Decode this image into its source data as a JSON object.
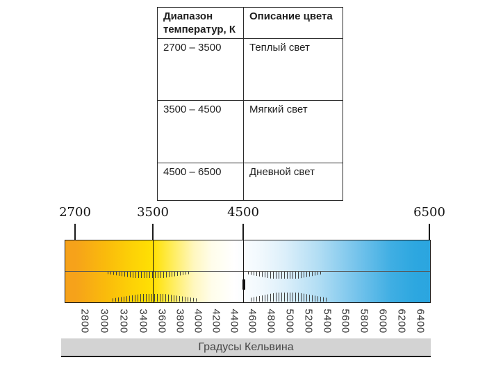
{
  "table": {
    "headers": [
      "Диапазон температур, К",
      "Описание цвета"
    ],
    "rows": [
      {
        "range": "2700 – 3500",
        "description": "Теплый  свет"
      },
      {
        "range": "3500 – 4500",
        "description": "Мягкий свет"
      },
      {
        "range": "4500 – 6500",
        "description": "Дневной свет"
      }
    ]
  },
  "chart_data": [
    {
      "type": "table",
      "columns": [
        "Диапазон температур, К",
        "Описание цвета"
      ],
      "rows": [
        [
          "2700 – 3500",
          "Теплый  свет"
        ],
        [
          "3500 – 4500",
          "Мягкий свет"
        ],
        [
          "4500 – 6500",
          "Дневной свет"
        ]
      ]
    },
    {
      "type": "heatmap",
      "title": "",
      "xlabel": "Градусы Кельвина",
      "axis_range_kelvin": [
        2700,
        6500
      ],
      "top_ticks": [
        2700,
        3500,
        4500,
        6500
      ],
      "bottom_ticks": [
        2800,
        3000,
        3200,
        3400,
        3600,
        3800,
        4000,
        4200,
        4400,
        4600,
        4800,
        5000,
        5200,
        5400,
        5600,
        5800,
        6000,
        6200,
        6400
      ],
      "divider_lines_kelvin": [
        3500,
        4500
      ],
      "gradient_stops": [
        {
          "kelvin": 2700,
          "color": "#F6A21A"
        },
        {
          "kelvin": 3000,
          "color": "#FABA0C"
        },
        {
          "kelvin": 3300,
          "color": "#FDD306"
        },
        {
          "kelvin": 3500,
          "color": "#FFE103"
        },
        {
          "kelvin": 3700,
          "color": "#FFEC55"
        },
        {
          "kelvin": 3950,
          "color": "#FFF7BE"
        },
        {
          "kelvin": 4150,
          "color": "#FFFDEA"
        },
        {
          "kelvin": 4400,
          "color": "#FFFFFF"
        },
        {
          "kelvin": 4700,
          "color": "#F0F8FD"
        },
        {
          "kelvin": 4950,
          "color": "#DCEFFA"
        },
        {
          "kelvin": 5300,
          "color": "#B3DEF4"
        },
        {
          "kelvin": 5700,
          "color": "#79C5EC"
        },
        {
          "kelvin": 6100,
          "color": "#3FAEE3"
        },
        {
          "kelvin": 6350,
          "color": "#2DA7E0"
        },
        {
          "kelvin": 6500,
          "color": "#2BA5DF"
        }
      ],
      "legend": "color temperature scale from warm orange-yellow through white to daylight blue"
    }
  ]
}
